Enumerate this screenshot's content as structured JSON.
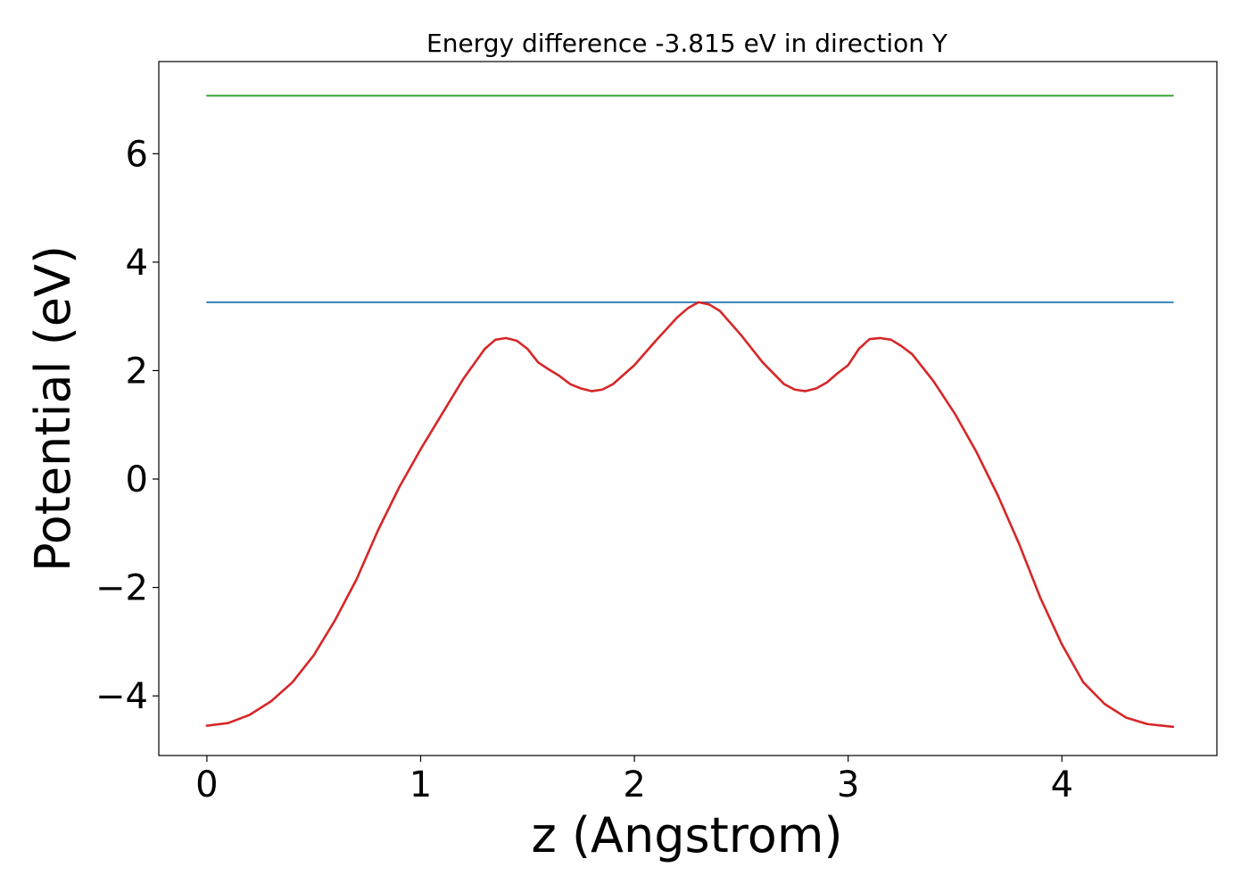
{
  "chart_data": {
    "type": "line",
    "title": "Energy difference -3.815 eV in direction Y",
    "xlabel": "z (Angstrom)",
    "ylabel": "Potential (eV)",
    "xlim": [
      -0.225,
      4.725
    ],
    "ylim": [
      -5.1,
      7.7
    ],
    "xticks": [
      0,
      1,
      2,
      3,
      4
    ],
    "xtick_labels": [
      "0",
      "1",
      "2",
      "3",
      "4"
    ],
    "yticks": [
      -4,
      -2,
      0,
      2,
      4,
      6
    ],
    "ytick_labels": [
      "−4",
      "−2",
      "0",
      "2",
      "4",
      "6"
    ],
    "grid": false,
    "legend": "none",
    "series": [
      {
        "color": "#2ca02c",
        "style": "horizontal",
        "x": [
          0,
          4.52
        ],
        "y": [
          7.07,
          7.07
        ]
      },
      {
        "color": "#1f77b4",
        "style": "horizontal",
        "x": [
          0,
          4.52
        ],
        "y": [
          3.26,
          3.26
        ]
      },
      {
        "color": "#d62728",
        "style": "curve",
        "x": [
          0,
          0.1,
          0.2,
          0.3,
          0.4,
          0.5,
          0.6,
          0.7,
          0.8,
          0.9,
          1.0,
          1.1,
          1.2,
          1.3,
          1.35,
          1.4,
          1.45,
          1.5,
          1.55,
          1.6,
          1.65,
          1.7,
          1.75,
          1.8,
          1.85,
          1.9,
          2.0,
          2.1,
          2.2,
          2.25,
          2.3,
          2.35,
          2.4,
          2.5,
          2.6,
          2.7,
          2.75,
          2.8,
          2.85,
          2.9,
          2.95,
          3.0,
          3.05,
          3.1,
          3.15,
          3.2,
          3.25,
          3.3,
          3.4,
          3.5,
          3.6,
          3.7,
          3.8,
          3.9,
          4.0,
          4.1,
          4.2,
          4.3,
          4.4,
          4.52
        ],
        "y": [
          -4.55,
          -4.5,
          -4.35,
          -4.1,
          -3.75,
          -3.25,
          -2.6,
          -1.85,
          -0.95,
          -0.15,
          0.55,
          1.2,
          1.85,
          2.4,
          2.57,
          2.6,
          2.55,
          2.4,
          2.15,
          2.02,
          1.9,
          1.75,
          1.67,
          1.62,
          1.65,
          1.75,
          2.1,
          2.55,
          2.98,
          3.15,
          3.26,
          3.22,
          3.1,
          2.65,
          2.15,
          1.75,
          1.65,
          1.62,
          1.67,
          1.78,
          1.95,
          2.1,
          2.4,
          2.58,
          2.6,
          2.57,
          2.45,
          2.3,
          1.8,
          1.2,
          0.5,
          -0.3,
          -1.2,
          -2.2,
          -3.05,
          -3.75,
          -4.15,
          -4.4,
          -4.52,
          -4.57
        ]
      }
    ]
  }
}
